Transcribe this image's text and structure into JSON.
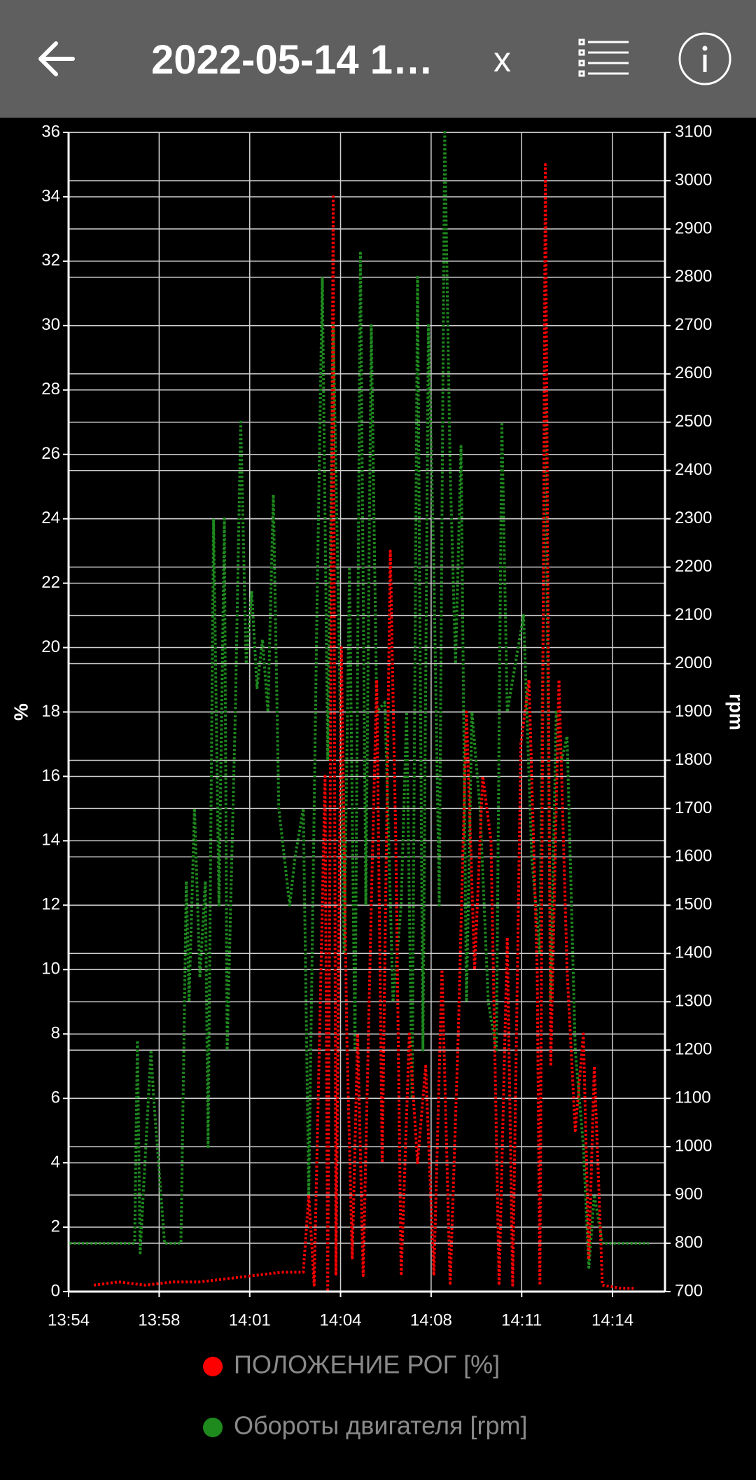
{
  "header": {
    "title": "2022-05-14 1…",
    "close": "x"
  },
  "chart_data": {
    "type": "line",
    "y_label": "%",
    "y2_label": "rpm",
    "xlim": [
      834.67,
      856.6
    ],
    "xticks": [
      {
        "value": 834.67,
        "label": "13:54"
      },
      {
        "value": 838,
        "label": "13:58"
      },
      {
        "value": 841.33,
        "label": "14:01"
      },
      {
        "value": 844.67,
        "label": "14:04"
      },
      {
        "value": 848,
        "label": "14:08"
      },
      {
        "value": 851.33,
        "label": "14:11"
      },
      {
        "value": 854.67,
        "label": "14:14"
      }
    ],
    "ylim": [
      0,
      36
    ],
    "yticks": [
      0,
      2,
      4,
      6,
      8,
      10,
      12,
      14,
      16,
      18,
      20,
      22,
      24,
      26,
      28,
      30,
      32,
      34,
      36
    ],
    "y2lim": [
      700,
      3100
    ],
    "y2ticks": [
      700,
      800,
      900,
      1000,
      1100,
      1200,
      1300,
      1400,
      1500,
      1600,
      1700,
      1800,
      1900,
      2000,
      2100,
      2200,
      2300,
      2400,
      2500,
      2600,
      2700,
      2800,
      2900,
      3000,
      3100
    ],
    "grid": true,
    "legend": "bottom",
    "series": [
      {
        "name": "ПОЛОЖЕНИЕ РОГ [%]",
        "color": "#ff0000",
        "x": [
          835.6,
          836.5,
          837.5,
          838.5,
          839.5,
          840.5,
          841.5,
          842.5,
          843.3,
          843.5,
          843.7,
          843.9,
          844.1,
          844.2,
          844.4,
          844.5,
          844.7,
          844.9,
          845.1,
          845.3,
          845.5,
          845.8,
          846.0,
          846.2,
          846.5,
          846.7,
          846.9,
          847.2,
          847.5,
          847.8,
          848.1,
          848.4,
          848.7,
          849.0,
          849.3,
          849.6,
          849.9,
          850.2,
          850.5,
          850.8,
          851.0,
          851.3,
          851.6,
          851.9,
          852.0,
          852.2,
          852.4,
          852.7,
          853.0,
          853.3,
          853.6,
          853.8,
          854.0,
          854.3,
          855.0,
          855.5
        ],
        "values": [
          0.2,
          0.3,
          0.2,
          0.3,
          0.3,
          0.4,
          0.5,
          0.6,
          0.6,
          3,
          0.2,
          8,
          16,
          0,
          34,
          0.5,
          20,
          8,
          1,
          8,
          0.5,
          12,
          19,
          4,
          23,
          14,
          0.5,
          8,
          4,
          7,
          0.5,
          10,
          0.2,
          8,
          18,
          10,
          16,
          14,
          0.2,
          11,
          0.2,
          17,
          19,
          10,
          0.2,
          35,
          7,
          19,
          10,
          5,
          8,
          1,
          7,
          0.2,
          0.1,
          0.1
        ]
      },
      {
        "name": "Обороты двигателя [rpm]",
        "color": "#1e8a1e",
        "axis": "y2",
        "x": [
          834.7,
          835.5,
          836.5,
          837.1,
          837.2,
          837.3,
          837.7,
          837.8,
          838.2,
          838.8,
          839.0,
          839.1,
          839.3,
          839.5,
          839.7,
          839.8,
          840.0,
          840.2,
          840.4,
          840.5,
          840.8,
          841.0,
          841.2,
          841.4,
          841.6,
          841.8,
          842.0,
          842.2,
          842.4,
          842.6,
          842.8,
          843.0,
          843.3,
          843.5,
          843.8,
          844.0,
          844.2,
          844.4,
          844.6,
          844.8,
          845.0,
          845.2,
          845.4,
          845.6,
          845.8,
          846.0,
          846.3,
          846.6,
          846.9,
          847.1,
          847.3,
          847.5,
          847.7,
          847.9,
          848.1,
          848.3,
          848.5,
          848.7,
          848.9,
          849.1,
          849.3,
          849.5,
          849.8,
          850.1,
          850.4,
          850.6,
          850.8,
          851.1,
          851.4,
          851.7,
          852.0,
          852.2,
          852.4,
          852.6,
          852.8,
          853.0,
          853.3,
          853.6,
          853.8,
          854.0,
          854.3,
          855.0,
          856.0
        ],
        "values": [
          800,
          800,
          800,
          800,
          1220,
          780,
          1200,
          1100,
          800,
          800,
          1550,
          1300,
          1700,
          1350,
          1550,
          1000,
          2300,
          1500,
          2300,
          1200,
          1900,
          2500,
          2000,
          2150,
          1950,
          2050,
          1900,
          2350,
          1700,
          1600,
          1500,
          1600,
          1700,
          900,
          2100,
          2800,
          1800,
          2700,
          2100,
          1400,
          2200,
          1200,
          2850,
          1500,
          2700,
          1900,
          1920,
          1300,
          1500,
          1900,
          1100,
          2800,
          1200,
          2700,
          2200,
          1500,
          3100,
          2400,
          2000,
          2450,
          1300,
          1900,
          1700,
          1300,
          1200,
          2500,
          1900,
          2000,
          2100,
          1600,
          1400,
          2550,
          1300,
          1900,
          1800,
          1850,
          1200,
          1000,
          750,
          900,
          800,
          800,
          800
        ]
      }
    ]
  }
}
